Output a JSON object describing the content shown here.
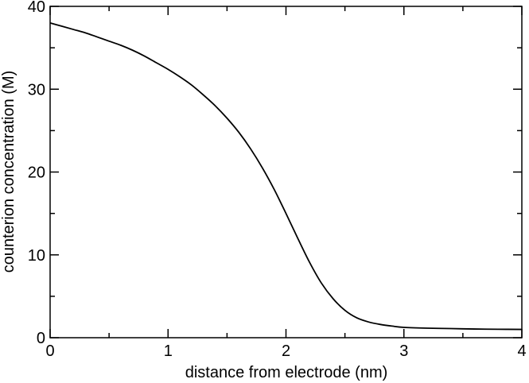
{
  "chart_data": {
    "type": "line",
    "title": "",
    "xlabel": "distance from electrode (nm)",
    "ylabel": "counterion concentration (M)",
    "xlim": [
      0,
      4
    ],
    "ylim": [
      0,
      40
    ],
    "xticks": [
      0,
      1,
      2,
      3,
      4
    ],
    "yticks": [
      0,
      10,
      20,
      30,
      40
    ],
    "grid": false,
    "line_color": "#000000",
    "series": [
      {
        "x": [
          0.0,
          0.1,
          0.2,
          0.3,
          0.4,
          0.5,
          0.6,
          0.7,
          0.8,
          0.9,
          1.0,
          1.1,
          1.2,
          1.3,
          1.4,
          1.5,
          1.6,
          1.7,
          1.8,
          1.9,
          2.0,
          2.1,
          2.2,
          2.3,
          2.4,
          2.5,
          2.6,
          2.7,
          2.8,
          2.9,
          3.0,
          3.2,
          3.4,
          3.6,
          3.8,
          4.0
        ],
        "y": [
          38.0,
          37.6,
          37.2,
          36.8,
          36.3,
          35.8,
          35.3,
          34.7,
          34.0,
          33.2,
          32.4,
          31.5,
          30.5,
          29.3,
          28.0,
          26.5,
          24.8,
          22.8,
          20.5,
          17.9,
          15.0,
          12.0,
          9.1,
          6.6,
          4.7,
          3.3,
          2.4,
          1.9,
          1.6,
          1.4,
          1.25,
          1.15,
          1.1,
          1.05,
          1.02,
          1.0
        ]
      }
    ]
  }
}
